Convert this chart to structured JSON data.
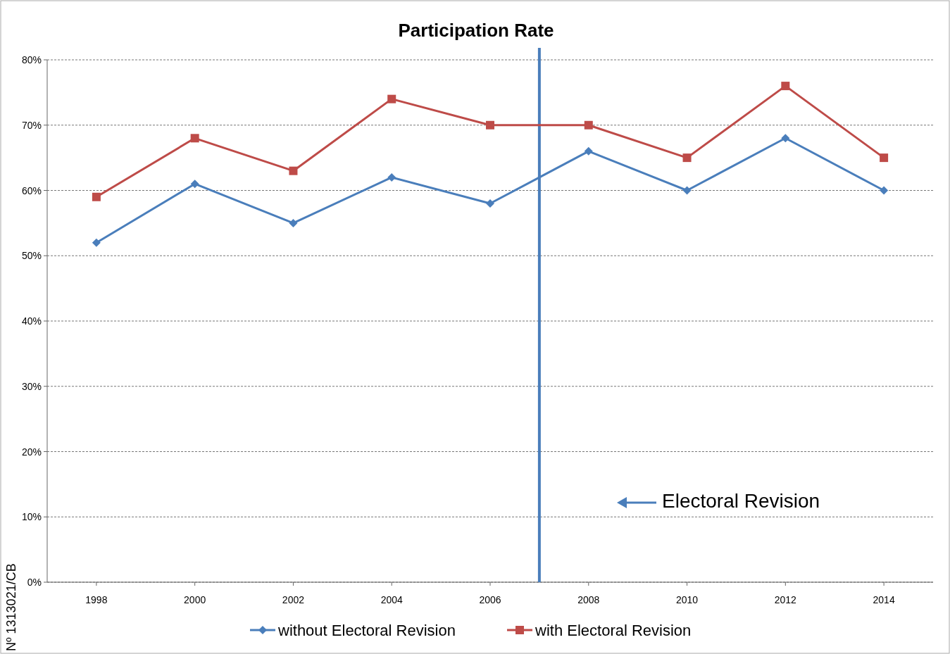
{
  "chart_data": {
    "type": "line",
    "title": "Participation Rate",
    "x": [
      1998,
      2000,
      2002,
      2004,
      2006,
      2008,
      2010,
      2012,
      2014
    ],
    "xlim": [
      1997,
      2015
    ],
    "xticks": [
      1998,
      2000,
      2002,
      2004,
      2006,
      2008,
      2010,
      2012,
      2014
    ],
    "ylim": [
      0,
      80
    ],
    "yticks": [
      {
        "value": 0,
        "label": "0%"
      },
      {
        "value": 10,
        "label": "10%"
      },
      {
        "value": 20,
        "label": "20%"
      },
      {
        "value": 30,
        "label": "30%"
      },
      {
        "value": 40,
        "label": "40%"
      },
      {
        "value": 50,
        "label": "50%"
      },
      {
        "value": 60,
        "label": "60%"
      },
      {
        "value": 70,
        "label": "70%"
      },
      {
        "value": 80,
        "label": "80%"
      }
    ],
    "grid": "y",
    "legend": "bottom",
    "line_style": "solid",
    "series": [
      {
        "name": "without Electoral Revision",
        "color": "#4a7ebb",
        "marker": "diamond",
        "values": [
          52,
          61,
          55,
          62,
          58,
          66,
          60,
          68,
          60
        ]
      },
      {
        "name": "with Electoral Revision",
        "color": "#be4b48",
        "marker": "square",
        "values": [
          59,
          68,
          63,
          74,
          70,
          70,
          65,
          76,
          65
        ]
      }
    ],
    "ref_lines": [
      {
        "axis": "x",
        "value": 2007,
        "color": "#4a7ebb",
        "line_style": "solid"
      }
    ],
    "annotations": [
      "Electoral Revision",
      "Nº 1313021/CB"
    ]
  }
}
